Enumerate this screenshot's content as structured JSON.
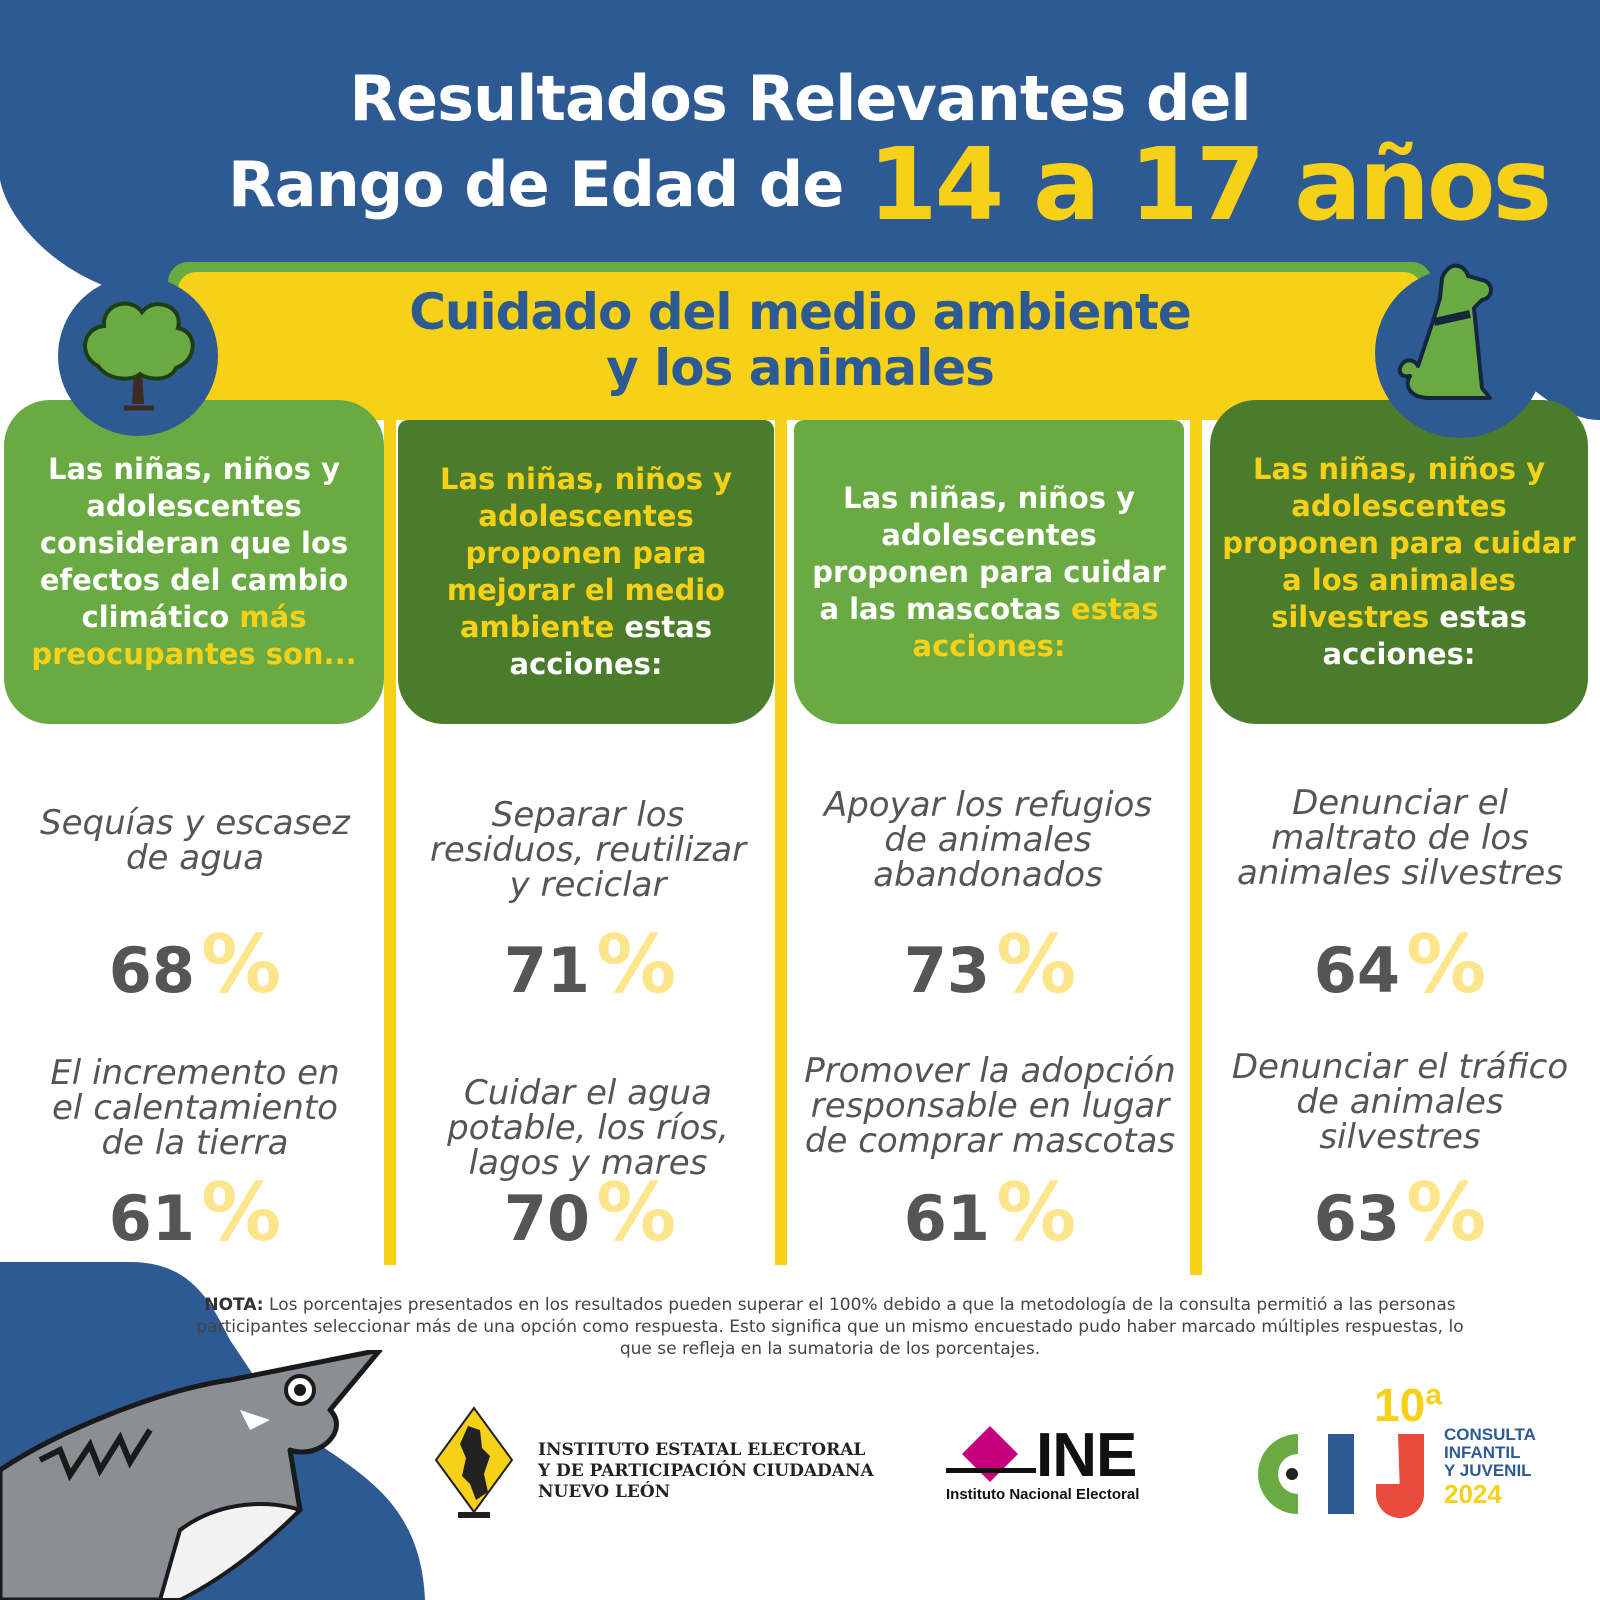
{
  "header": {
    "title_line1": "Resultados Relevantes del",
    "title_line2": "Rango de Edad de",
    "title_highlight": "14 a 17 años"
  },
  "banner": {
    "line1": "Cuidado del medio ambiente",
    "line2": "y los animales"
  },
  "columns": [
    {
      "card_white_1": "Las niñas, niños y adolescentes consideran que los efectos del cambio climático",
      "card_yellow_1": "más preocupantes son...",
      "card_white_2": "",
      "items": [
        {
          "label": "Sequías y escasez de agua",
          "value": "68",
          "symbol": "%"
        },
        {
          "label": "El incremento en el calentamiento de la tierra",
          "value": "61",
          "symbol": "%"
        }
      ]
    },
    {
      "card_yellow_1": "Las niñas, niños y adolescentes proponen para mejorar el medio ambiente",
      "card_white_2": "estas acciones:",
      "items": [
        {
          "label": "Separar los residuos, reutilizar y reciclar",
          "value": "71",
          "symbol": "%"
        },
        {
          "label": "Cuidar el agua potable, los ríos, lagos y mares",
          "value": "70",
          "symbol": "%"
        }
      ]
    },
    {
      "card_white_1": "Las niñas, niños y adolescentes proponen para cuidar a las mascotas",
      "card_yellow_1": "estas acciones:",
      "items": [
        {
          "label": "Apoyar los refugios de animales abandonados",
          "value": "73",
          "symbol": "%"
        },
        {
          "label": "Promover la adopción responsable en lugar de comprar mascotas",
          "value": "61",
          "symbol": "%"
        }
      ]
    },
    {
      "card_yellow_1": "Las niñas, niños y adolescentes proponen para cuidar a los animales silvestres",
      "card_white_2": "estas acciones:",
      "items": [
        {
          "label": "Denunciar el maltrato de los animales silvestres",
          "value": "64",
          "symbol": "%"
        },
        {
          "label": "Denunciar el tráfico de animales silvestres",
          "value": "63",
          "symbol": "%"
        }
      ]
    }
  ],
  "note": {
    "label": "NOTA:",
    "text": "Los porcentajes presentados en los resultados pueden superar el 100% debido a que la metodología de la consulta permitió a las personas participantes seleccionar más de una opción como respuesta. Esto significa que un mismo encuestado pudo haber marcado múltiples respuestas, lo que se refleja en la sumatoria de los porcentajes."
  },
  "logos": {
    "iee_line1": "INSTITUTO ESTATAL ELECTORAL",
    "iee_line2": "Y DE PARTICIPACIÓN CIUDADANA",
    "iee_line3": "NUEVO LEÓN",
    "ine_big": "INE",
    "ine_small": "Instituto Nacional Electoral",
    "cij_edition": "10ª",
    "cij_letters": "CIJ",
    "cij_line1": "CONSULTA",
    "cij_line2": "INFANTIL",
    "cij_line3": "Y JUVENIL",
    "cij_year": "2024"
  },
  "icons": [
    "tree-icon",
    "dog-icon",
    "shark-illustration",
    "nuevo-leon-map-icon",
    "ine-diamond-icon"
  ],
  "colors": {
    "blue": "#2d5a93",
    "yellow": "#f7d117",
    "light_green": "#6aaa42",
    "dark_green": "#4a7c2c",
    "pct_yellow": "#fce58a",
    "grey_text": "#555555"
  }
}
